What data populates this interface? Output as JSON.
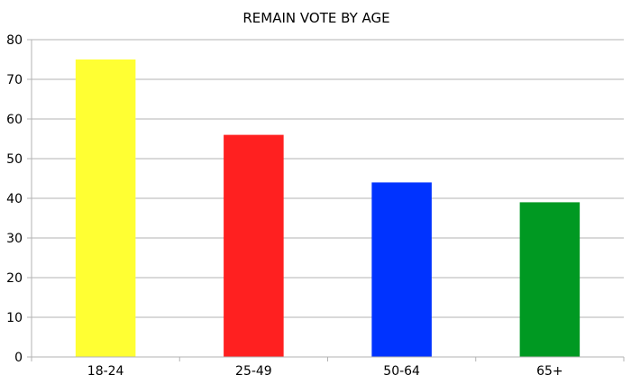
{
  "chart_data": {
    "type": "bar",
    "title": "REMAIN VOTE BY AGE",
    "xlabel": "",
    "ylabel": "",
    "categories": [
      "18-24",
      "25-49",
      "50-64",
      "65+"
    ],
    "values": [
      75,
      56,
      44,
      39
    ],
    "colors": [
      "#ffff33",
      "#ff2020",
      "#0033ff",
      "#009922"
    ],
    "ylim": [
      0,
      80
    ],
    "yticks": [
      0,
      10,
      20,
      30,
      40,
      50,
      60,
      70,
      80
    ],
    "grid": true,
    "legend": "none"
  }
}
